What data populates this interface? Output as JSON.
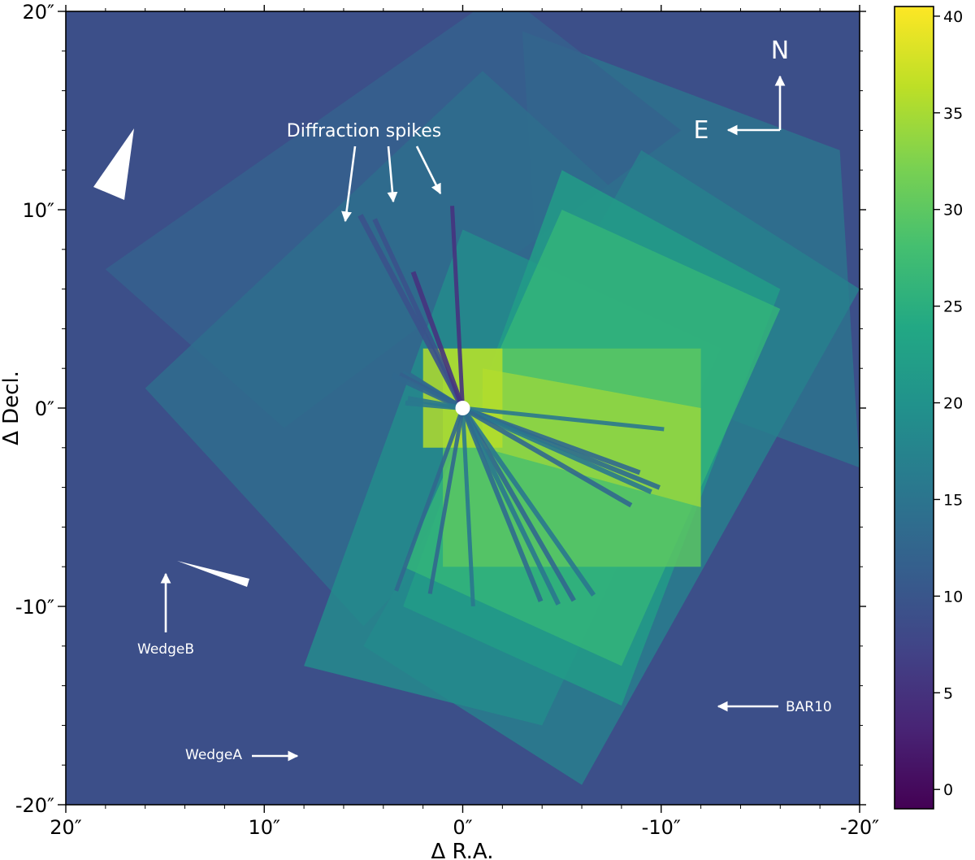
{
  "chart_data": {
    "type": "heatmap",
    "title": "",
    "xlabel": "Δ R.A.",
    "ylabel": "Δ Decl.",
    "xlim": [
      20,
      -20
    ],
    "ylim": [
      -20,
      20
    ],
    "xunit": "arcsec",
    "yunit": "arcsec",
    "xticks": [
      {
        "value": 20,
        "label": "20″"
      },
      {
        "value": 10,
        "label": "10″"
      },
      {
        "value": 0,
        "label": "0″"
      },
      {
        "value": -10,
        "label": "-10″"
      },
      {
        "value": -20,
        "label": "-20″"
      }
    ],
    "yticks": [
      {
        "value": 20,
        "label": "20″"
      },
      {
        "value": 10,
        "label": "10″"
      },
      {
        "value": 0,
        "label": "0″"
      },
      {
        "value": -10,
        "label": "-10″"
      },
      {
        "value": -20,
        "label": "-20″"
      }
    ],
    "colorbar": {
      "colormap": "viridis",
      "range": [
        -1,
        40.5
      ],
      "ticks": [
        0,
        5,
        10,
        15,
        20,
        25,
        30,
        35,
        40
      ],
      "tick_labels": [
        "0",
        "5",
        "10",
        "15",
        "20",
        "25",
        "30",
        "35",
        "40"
      ]
    },
    "background_value": 9,
    "regions": [
      {
        "corners": [
          [
            -3,
            19
          ],
          [
            -19,
            13
          ],
          [
            -20,
            -3
          ],
          [
            -4,
            3
          ]
        ],
        "value": 15
      },
      {
        "corners": [
          [
            18,
            7
          ],
          [
            -2,
            21
          ],
          [
            -11,
            14
          ],
          [
            9,
            -1
          ]
        ],
        "value": 12
      },
      {
        "corners": [
          [
            16,
            1
          ],
          [
            -1,
            17
          ],
          [
            -12,
            7
          ],
          [
            5,
            -11
          ]
        ],
        "value": 14
      },
      {
        "corners": [
          [
            5,
            -12
          ],
          [
            -9,
            13
          ],
          [
            -20,
            6
          ],
          [
            -6,
            -19
          ]
        ],
        "value": 17
      },
      {
        "corners": [
          [
            8,
            -13
          ],
          [
            0,
            9
          ],
          [
            -13,
            3
          ],
          [
            -4,
            -16
          ]
        ],
        "value": 19
      },
      {
        "corners": [
          [
            3,
            -10
          ],
          [
            -5,
            12
          ],
          [
            -16,
            6
          ],
          [
            -8,
            -15
          ]
        ],
        "value": 22
      },
      {
        "corners": [
          [
            3,
            -8
          ],
          [
            -5,
            10
          ],
          [
            -16,
            5
          ],
          [
            -8,
            -13
          ]
        ],
        "value": 26
      },
      {
        "corners": [
          [
            1,
            3
          ],
          [
            -12,
            3
          ],
          [
            -12,
            -8
          ],
          [
            1,
            -8
          ]
        ],
        "value": 30
      },
      {
        "corners": [
          [
            -1,
            2
          ],
          [
            -12,
            0
          ],
          [
            -12,
            -5
          ],
          [
            -1,
            -2
          ]
        ],
        "value": 34
      },
      {
        "corners": [
          [
            2,
            3
          ],
          [
            -2,
            3
          ],
          [
            -2,
            -2
          ],
          [
            2,
            -2
          ]
        ],
        "value": 36
      }
    ],
    "annotations": [
      {
        "text": "Diffraction spikes",
        "xy": [
          6,
          9
        ],
        "arrow": true
      },
      {
        "text": "N",
        "xy": [
          -16,
          17
        ],
        "arrow": true
      },
      {
        "text": "E",
        "xy": [
          -13,
          14.5
        ],
        "arrow": true
      },
      {
        "text": "WedgeB",
        "xy": [
          15,
          -8
        ],
        "arrow": true
      },
      {
        "text": "WedgeA",
        "xy": [
          8,
          -17.5
        ],
        "arrow": true
      },
      {
        "text": "BAR10",
        "xy": [
          -12.5,
          -15
        ],
        "arrow": true
      }
    ]
  }
}
